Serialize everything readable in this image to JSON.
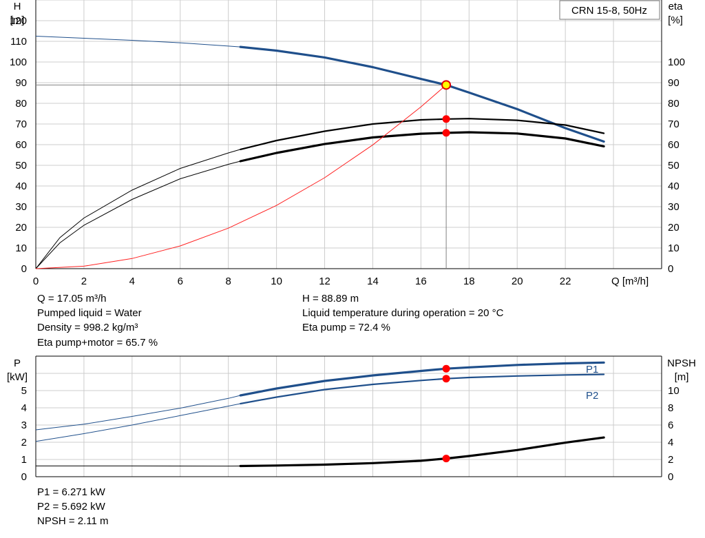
{
  "chart_data": [
    {
      "type": "line",
      "title": "CRN 15-8, 50Hz",
      "xlabel": "Q [m³/h]",
      "ylabel_left_name": "H",
      "ylabel_left_unit": "[m]",
      "ylabel_right_name": "eta",
      "ylabel_right_unit": "[%]",
      "xlim": [
        0,
        26
      ],
      "ylim_left": [
        0,
        130
      ],
      "ylim_right": [
        0,
        130
      ],
      "grid": true,
      "x_ticks": [
        "0",
        "2",
        "4",
        "6",
        "8",
        "10",
        "12",
        "14",
        "16",
        "18",
        "20",
        "22"
      ],
      "y_ticks_left": [
        "0",
        "10",
        "20",
        "30",
        "40",
        "50",
        "60",
        "70",
        "80",
        "90",
        "100",
        "110",
        "120"
      ],
      "y_ticks_right": [
        "0",
        "10",
        "20",
        "30",
        "40",
        "50",
        "60",
        "70",
        "80",
        "90",
        "100"
      ],
      "series": [
        {
          "key": "head",
          "color": "#1f4f8b",
          "thin_x": [
            0,
            2,
            4,
            6,
            8,
            8.5
          ],
          "thin_y": [
            112.5,
            111.5,
            110.5,
            109.3,
            107.7,
            107.3
          ],
          "x": [
            8.5,
            10,
            12,
            14,
            16,
            17.05,
            18,
            20,
            22,
            23.6
          ],
          "y": [
            107.3,
            105.5,
            102.2,
            97.5,
            91.8,
            88.89,
            85.2,
            77.2,
            68.0,
            61.5
          ]
        },
        {
          "key": "eta_pump",
          "color": "#000000",
          "thin_x": [
            0,
            1,
            2,
            4,
            6,
            8,
            8.5
          ],
          "thin_y": [
            0,
            15,
            24.5,
            38,
            48.5,
            56,
            57.7
          ],
          "x": [
            8.5,
            10,
            12,
            14,
            16,
            17.05,
            18,
            20,
            22,
            23.6
          ],
          "y": [
            57.7,
            62,
            66.5,
            70,
            72,
            72.4,
            72.6,
            71.8,
            69.5,
            65.5
          ]
        },
        {
          "key": "eta_total",
          "color": "#000000",
          "thin_x": [
            0,
            1,
            2,
            4,
            6,
            8,
            8.5
          ],
          "thin_y": [
            0,
            12.5,
            21,
            33.5,
            43.5,
            50.5,
            52
          ],
          "x": [
            8.5,
            10,
            12,
            14,
            16,
            17.05,
            18,
            20,
            22,
            23.6
          ],
          "y": [
            52,
            56,
            60.3,
            63.5,
            65.3,
            65.7,
            66,
            65.4,
            63,
            59.2
          ]
        },
        {
          "key": "system",
          "color": "#ff2020",
          "x": [
            0,
            2,
            4,
            6,
            8,
            10,
            12,
            14,
            16,
            17.05
          ],
          "y": [
            0,
            1.2,
            4.9,
            11.0,
            19.6,
            30.6,
            44.0,
            59.9,
            78.3,
            88.89
          ]
        }
      ],
      "operating_point": {
        "Q": 17.05,
        "H": 88.89,
        "eta_pump": 72.4,
        "eta_total": 65.7
      }
    },
    {
      "type": "line",
      "ylabel_left_name": "P",
      "ylabel_left_unit": "[kW]",
      "ylabel_right_name": "NPSH",
      "ylabel_right_unit": "[m]",
      "xlim": [
        0,
        26
      ],
      "ylim_left": [
        0,
        7
      ],
      "ylim_right": [
        0,
        14
      ],
      "grid": true,
      "y_ticks_left": [
        "0",
        "1",
        "2",
        "3",
        "4",
        "5"
      ],
      "y_ticks_right": [
        "0",
        "2",
        "4",
        "6",
        "8",
        "10"
      ],
      "series": [
        {
          "key": "p1",
          "name": "P1",
          "color": "#1f4f8b",
          "thin_x": [
            0,
            2,
            4,
            6,
            8,
            8.5
          ],
          "thin_y": [
            2.72,
            3.05,
            3.5,
            3.98,
            4.55,
            4.72
          ],
          "x": [
            8.5,
            10,
            12,
            14,
            16,
            17.05,
            18,
            20,
            22,
            23.6
          ],
          "y": [
            4.72,
            5.12,
            5.56,
            5.88,
            6.14,
            6.271,
            6.35,
            6.49,
            6.58,
            6.63
          ]
        },
        {
          "key": "p2",
          "name": "P2",
          "color": "#1f4f8b",
          "thin_x": [
            0,
            2,
            4,
            6,
            8,
            8.5
          ],
          "thin_y": [
            2.05,
            2.5,
            3.0,
            3.55,
            4.1,
            4.24
          ],
          "x": [
            8.5,
            10,
            12,
            14,
            16,
            17.05,
            18,
            20,
            22,
            23.6
          ],
          "y": [
            4.24,
            4.62,
            5.06,
            5.36,
            5.59,
            5.692,
            5.76,
            5.85,
            5.91,
            5.94
          ]
        },
        {
          "key": "npsh",
          "color": "#000000",
          "thin_x": [
            0,
            4,
            8,
            8.5
          ],
          "thin_y": [
            1.25,
            1.25,
            1.23,
            1.24
          ],
          "x": [
            8.5,
            10,
            12,
            14,
            16,
            17.05,
            18,
            20,
            22,
            23.6
          ],
          "y": [
            1.24,
            1.3,
            1.4,
            1.58,
            1.85,
            2.11,
            2.4,
            3.1,
            3.95,
            4.55
          ]
        }
      ],
      "operating_point": {
        "Q": 17.05,
        "P1": 6.271,
        "P2": 5.692,
        "NPSH": 2.11
      }
    }
  ],
  "info": {
    "q": "Q = 17.05 m³/h",
    "liquid": "Pumped liquid = Water",
    "density": "Density = 998.2 kg/m³",
    "eta_total": "Eta pump+motor = 65.7 %",
    "h": "H = 88.89 m",
    "temp": "Liquid temperature during operation = 20 °C",
    "eta_pump": "Eta pump = 72.4 %",
    "p1": "P1 = 6.271 kW",
    "p2": "P2 = 5.692 kW",
    "npsh": "NPSH = 2.11 m"
  }
}
